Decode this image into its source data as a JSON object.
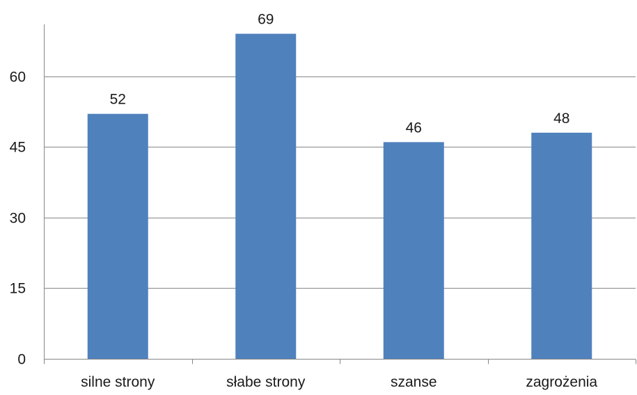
{
  "chart_data": {
    "type": "bar",
    "categories": [
      "silne strony",
      "słabe strony",
      "szanse",
      "zagrożenia"
    ],
    "values": [
      52,
      69,
      46,
      48
    ],
    "data_labels": [
      "52",
      "69",
      "46",
      "48"
    ],
    "title": "",
    "xlabel": "",
    "ylabel": "",
    "ylim": [
      0,
      71
    ],
    "yticks": [
      0,
      15,
      30,
      45,
      60
    ],
    "ytick_labels": [
      "0",
      "15",
      "30",
      "45",
      "60"
    ],
    "grid": "horizontal",
    "legend": "none",
    "colors": {
      "bar": "#4f81bd",
      "grid": "#868686",
      "axis": "#868686",
      "text": "#1a1a1a"
    }
  }
}
